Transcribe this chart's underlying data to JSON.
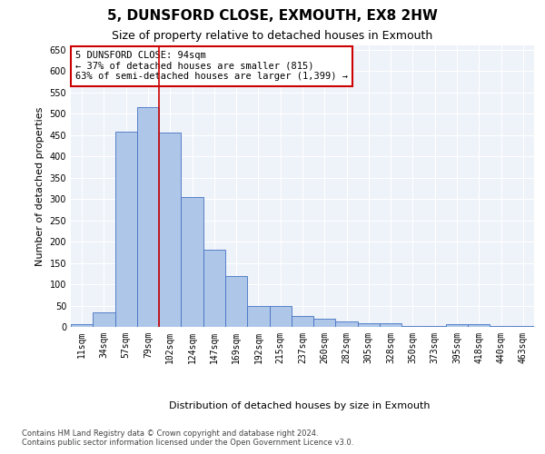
{
  "title": "5, DUNSFORD CLOSE, EXMOUTH, EX8 2HW",
  "subtitle": "Size of property relative to detached houses in Exmouth",
  "xlabel": "Distribution of detached houses by size in Exmouth",
  "ylabel": "Number of detached properties",
  "bar_labels": [
    "11sqm",
    "34sqm",
    "57sqm",
    "79sqm",
    "102sqm",
    "124sqm",
    "147sqm",
    "169sqm",
    "192sqm",
    "215sqm",
    "237sqm",
    "260sqm",
    "282sqm",
    "305sqm",
    "328sqm",
    "350sqm",
    "373sqm",
    "395sqm",
    "418sqm",
    "440sqm",
    "463sqm"
  ],
  "bar_values": [
    7,
    35,
    458,
    515,
    456,
    305,
    180,
    120,
    50,
    50,
    26,
    20,
    13,
    8,
    8,
    3,
    3,
    7,
    7,
    3,
    3
  ],
  "bar_color": "#aec6e8",
  "bar_edge_color": "#4472c4",
  "background_color": "#eef2f9",
  "grid_color": "#ffffff",
  "vline_color": "#cc0000",
  "annotation_box_text": "5 DUNSFORD CLOSE: 94sqm\n← 37% of detached houses are smaller (815)\n63% of semi-detached houses are larger (1,399) →",
  "annotation_box_color": "#cc0000",
  "ylim": [
    0,
    660
  ],
  "yticks": [
    0,
    50,
    100,
    150,
    200,
    250,
    300,
    350,
    400,
    450,
    500,
    550,
    600,
    650
  ],
  "footer_line1": "Contains HM Land Registry data © Crown copyright and database right 2024.",
  "footer_line2": "Contains public sector information licensed under the Open Government Licence v3.0.",
  "title_fontsize": 11,
  "subtitle_fontsize": 9,
  "annotation_fontsize": 7.5,
  "axis_label_fontsize": 8,
  "tick_fontsize": 7,
  "footer_fontsize": 6,
  "ylabel_fontsize": 8
}
